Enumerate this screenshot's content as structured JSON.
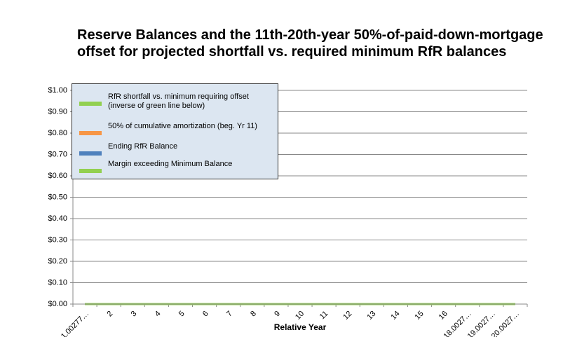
{
  "chart_data": {
    "type": "line",
    "title": "Reserve Balances and the 11th-20th-year 50%-of-paid-down-mortgage\noffset for projected shortfall vs. required minimum RfR balances",
    "x_label": "Relative Year",
    "categories": [
      "1.00277…",
      "2",
      "3",
      "4",
      "5",
      "6",
      "7",
      "8",
      "9",
      "10",
      "11",
      "12",
      "13",
      "14",
      "15",
      "16",
      "18.0027…",
      "19.0027…",
      "20.0027…"
    ],
    "series": [
      {
        "name": "RfR shortfall vs. minimum requiring offset (inverse of green line below)",
        "color": "#92d050",
        "values": [
          0,
          0,
          0,
          0,
          0,
          0,
          0,
          0,
          0,
          0,
          0,
          0,
          0,
          0,
          0,
          0,
          0,
          0,
          0
        ]
      },
      {
        "name": "50% of cumulative amortization (beg. Yr 11)",
        "color": "#f79646",
        "values": [
          0,
          0,
          0,
          0,
          0,
          0,
          0,
          0,
          0,
          0,
          0,
          0,
          0,
          0,
          0,
          0,
          0,
          0,
          0
        ]
      },
      {
        "name": "Ending RfR Balance",
        "color": "#4f81bd",
        "values": [
          0,
          0,
          0,
          0,
          0,
          0,
          0,
          0,
          0,
          0,
          0,
          0,
          0,
          0,
          0,
          0,
          0,
          0,
          0
        ]
      },
      {
        "name": "Margin exceeding Minimum Balance",
        "color": "#92d050",
        "values": [
          0,
          0,
          0,
          0,
          0,
          0,
          0,
          0,
          0,
          0,
          0,
          0,
          0,
          0,
          0,
          0,
          0,
          0,
          0
        ]
      }
    ],
    "ylim": [
      0,
      1
    ],
    "yticks": [
      {
        "value": 0,
        "label": "$0.00"
      },
      {
        "value": 0.1,
        "label": "$0.10"
      },
      {
        "value": 0.2,
        "label": "$0.20"
      },
      {
        "value": 0.3,
        "label": "$0.30"
      },
      {
        "value": 0.4,
        "label": "$0.40"
      },
      {
        "value": 0.5,
        "label": "$0.50"
      },
      {
        "value": 0.6,
        "label": "$0.60"
      },
      {
        "value": 0.7,
        "label": "$0.70"
      },
      {
        "value": 0.8,
        "label": "$0.80"
      },
      {
        "value": 0.9,
        "label": "$0.90"
      },
      {
        "value": 1,
        "label": "$1.00"
      }
    ],
    "grid": true,
    "legend": "upper-left"
  }
}
